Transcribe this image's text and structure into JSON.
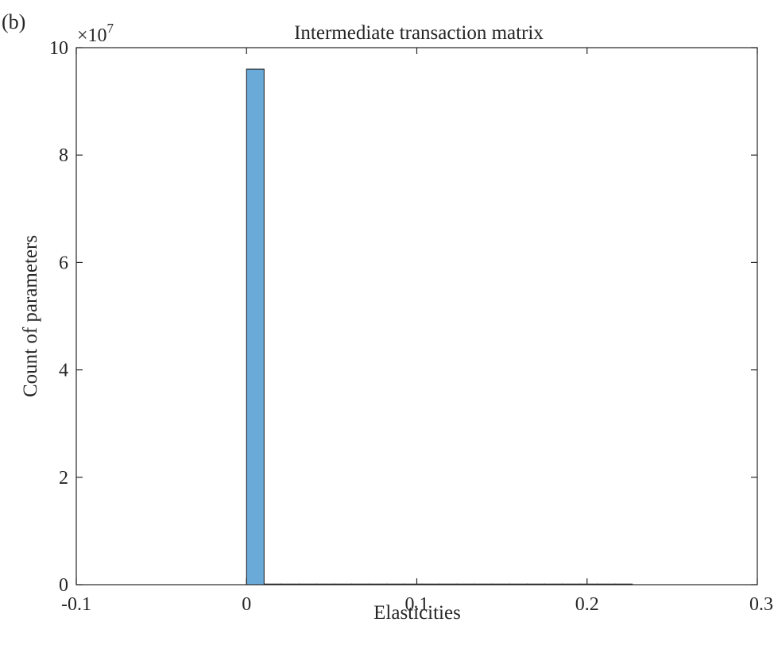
{
  "panel_label": "(b)",
  "chart_data": {
    "type": "bar",
    "title": "Intermediate transaction matrix",
    "xlabel": "Elasticities",
    "ylabel": "Count of parameters",
    "y_exponent_label": "×10",
    "y_exponent_power": "7",
    "xlim": [
      -0.1,
      0.3
    ],
    "ylim": [
      0,
      10
    ],
    "y_scale_factor": 10000000,
    "x_ticks": [
      -0.1,
      0,
      0.1,
      0.2,
      0.3
    ],
    "x_tick_labels": [
      "-0.1",
      "0",
      "0.1",
      "0.2",
      "0.3"
    ],
    "y_ticks": [
      0,
      2,
      4,
      6,
      8,
      10
    ],
    "y_tick_labels": [
      "0",
      "2",
      "4",
      "6",
      "8",
      "10"
    ],
    "grid": false,
    "bar_color": "#6aaad8",
    "bar_edge_color": "#1a1a1a",
    "bins": [
      {
        "x0": 0.0,
        "x1": 0.0103,
        "value": 9.6
      },
      {
        "x0": 0.0103,
        "x1": 0.0206,
        "value": 0.012
      },
      {
        "x0": 0.0206,
        "x1": 0.0309,
        "value": 0.004
      },
      {
        "x0": 0.0309,
        "x1": 0.0412,
        "value": 0.002
      },
      {
        "x0": 0.0412,
        "x1": 0.0515,
        "value": 0.001
      },
      {
        "x0": 0.0515,
        "x1": 0.0618,
        "value": 0.001
      },
      {
        "x0": 0.0618,
        "x1": 0.0721,
        "value": 0.0005
      },
      {
        "x0": 0.0721,
        "x1": 0.0824,
        "value": 0.0005
      },
      {
        "x0": 0.0824,
        "x1": 0.0927,
        "value": 0.0003
      },
      {
        "x0": 0.0927,
        "x1": 0.103,
        "value": 0.0003
      },
      {
        "x0": 0.103,
        "x1": 0.1133,
        "value": 0.0002
      },
      {
        "x0": 0.1133,
        "x1": 0.1236,
        "value": 0.0002
      },
      {
        "x0": 0.1236,
        "x1": 0.1339,
        "value": 0.0002
      },
      {
        "x0": 0.1339,
        "x1": 0.1442,
        "value": 0.0001
      },
      {
        "x0": 0.1442,
        "x1": 0.1545,
        "value": 0.0001
      },
      {
        "x0": 0.1545,
        "x1": 0.1648,
        "value": 0.0001
      },
      {
        "x0": 0.1648,
        "x1": 0.1751,
        "value": 0.0001
      },
      {
        "x0": 0.1751,
        "x1": 0.1854,
        "value": 0.0001
      },
      {
        "x0": 0.1854,
        "x1": 0.1957,
        "value": 0.0001
      },
      {
        "x0": 0.1957,
        "x1": 0.206,
        "value": 0.0001
      },
      {
        "x0": 0.206,
        "x1": 0.2163,
        "value": 0.0001
      },
      {
        "x0": 0.2163,
        "x1": 0.2266,
        "value": 0.0001
      }
    ]
  }
}
